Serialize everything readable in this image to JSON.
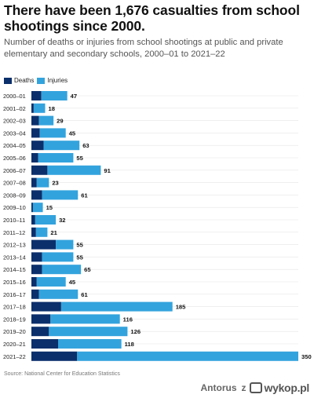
{
  "title": "There have been 1,676 casualties from school shootings since 2000.",
  "subtitle": "Number of deaths or injuries from school shootings at public and private elementary and secondary schools, 2000–01 to 2021–22",
  "source": "Source: National Center for Education Statistics",
  "watermark": {
    "user": "Antorus",
    "z": "z",
    "logo": "wykop.pl",
    "logo_icon": "wykop-logo-icon"
  },
  "colors": {
    "deaths": "#0b2f6b",
    "injuries": "#33a3dd",
    "grid": "#e6e6e6"
  },
  "chart_data": {
    "type": "bar",
    "orientation": "horizontal",
    "stacked": true,
    "legend_position": "top-left",
    "categories": [
      "2000–01",
      "2001–02",
      "2002–03",
      "2003–04",
      "2004–05",
      "2005–06",
      "2006–07",
      "2007–08",
      "2008–09",
      "2009–10",
      "2010–11",
      "2011–12",
      "2012–13",
      "2013–14",
      "2014–15",
      "2015–16",
      "2016–17",
      "2017–18",
      "2018–19",
      "2019–20",
      "2020–21",
      "2021–22"
    ],
    "series": [
      {
        "name": "Deaths",
        "values": [
          13,
          3,
          10,
          11,
          16,
          9,
          21,
          7,
          14,
          2,
          5,
          6,
          32,
          14,
          14,
          7,
          10,
          39,
          25,
          23,
          35,
          60
        ]
      },
      {
        "name": "Injuries",
        "values": [
          34,
          15,
          19,
          34,
          47,
          46,
          70,
          16,
          47,
          13,
          27,
          15,
          23,
          41,
          51,
          38,
          51,
          146,
          91,
          103,
          83,
          290
        ]
      }
    ],
    "totals": [
      47,
      18,
      29,
      45,
      63,
      55,
      91,
      23,
      61,
      15,
      32,
      21,
      55,
      55,
      65,
      45,
      61,
      185,
      116,
      126,
      118,
      350
    ],
    "xlim": [
      0,
      350
    ],
    "grid": true
  }
}
